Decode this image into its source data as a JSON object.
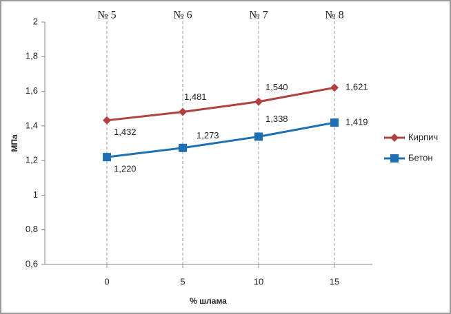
{
  "chart_data": {
    "type": "line",
    "top_labels": [
      "№ 5",
      "№ 6",
      "№ 7",
      "№ 8"
    ],
    "categories": [
      "0",
      "5",
      "10",
      "15"
    ],
    "x_label": "% шлама",
    "y_label": "МПа",
    "ylim": [
      0.6,
      2
    ],
    "yticks": [
      {
        "value": 0.6,
        "label": "0,6"
      },
      {
        "value": 0.8,
        "label": "0,8"
      },
      1,
      {
        "value": 1.2,
        "label": "1,2"
      },
      {
        "value": 1.4,
        "label": "1,4"
      },
      {
        "value": 1.6,
        "label": "1,6"
      },
      {
        "value": 1.8,
        "label": "1,8"
      },
      2
    ],
    "series": [
      {
        "name": "Кирпич",
        "color": "#b0413e",
        "marker": "diamond",
        "values": [
          1.432,
          1.481,
          1.54,
          1.621
        ],
        "value_labels": [
          "1,432",
          "1,481",
          "1,540",
          "1,621"
        ]
      },
      {
        "name": "Бетон",
        "color": "#1f6fb4",
        "marker": "square",
        "values": [
          1.22,
          1.273,
          1.338,
          1.419
        ],
        "value_labels": [
          "1,220",
          "1,273",
          "1,338",
          "1,419"
        ]
      }
    ]
  }
}
